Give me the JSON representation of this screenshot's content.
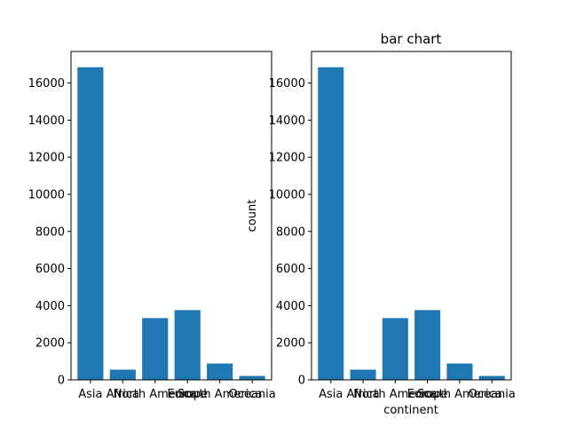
{
  "chart_data": [
    {
      "type": "bar",
      "title": "",
      "xlabel": "",
      "ylabel": "",
      "categories": [
        "Asia",
        "Africa",
        "North America",
        "Europe",
        "South America",
        "Oceania"
      ],
      "values": [
        16850,
        550,
        3330,
        3760,
        880,
        210
      ],
      "ylim": [
        0,
        17700
      ],
      "yticks": [
        0,
        2000,
        4000,
        6000,
        8000,
        10000,
        12000,
        14000,
        16000
      ],
      "grid": false,
      "bar_color": "#1f77b4"
    },
    {
      "type": "bar",
      "title": "bar chart",
      "xlabel": "continent",
      "ylabel": "count",
      "categories": [
        "Asia",
        "Africa",
        "North America",
        "Europe",
        "South America",
        "Oceania"
      ],
      "values": [
        16850,
        550,
        3330,
        3760,
        880,
        210
      ],
      "ylim": [
        0,
        17700
      ],
      "yticks": [
        0,
        2000,
        4000,
        6000,
        8000,
        10000,
        12000,
        14000,
        16000
      ],
      "grid": false,
      "bar_color": "#1f77b4"
    }
  ]
}
